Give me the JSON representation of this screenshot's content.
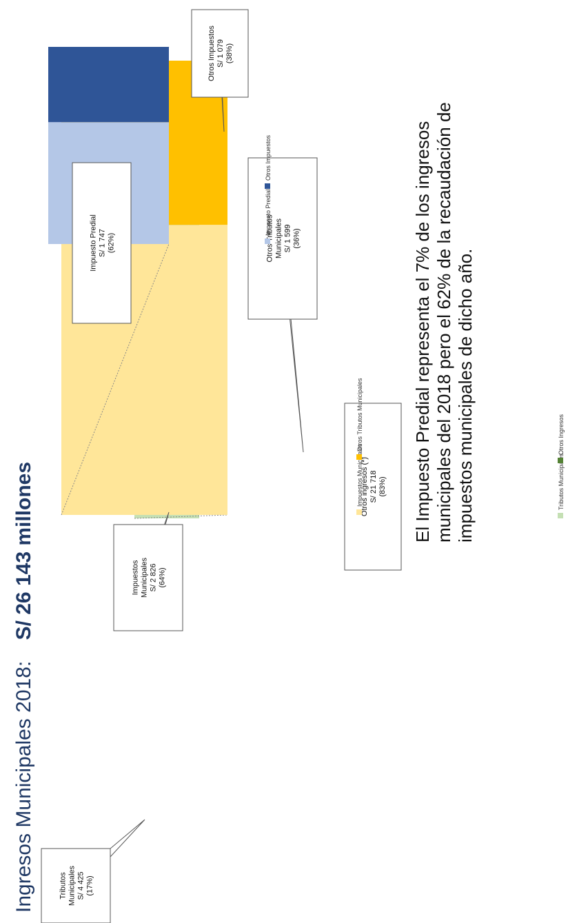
{
  "title": {
    "label": "Ingresos Municipales 2018:",
    "total": "S/ 26 143 millones"
  },
  "chart_data": [
    {
      "type": "bar",
      "stacked": true,
      "categories": [
        "Ingresos Municipales"
      ],
      "series": [
        {
          "name": "Tributos Municipales",
          "values": [
            4425
          ],
          "percent": 17,
          "color": "#c5e0b4",
          "label_lines": [
            "Tributos",
            "Municipales",
            "S/ 4 425",
            "(17%)"
          ]
        },
        {
          "name": "Otros Ingresos",
          "values": [
            21718
          ],
          "percent": 83,
          "color": "#548235",
          "label_lines": [
            "Otros ingresos (*)",
            "S/ 21 718",
            "(83%)"
          ]
        }
      ]
    },
    {
      "type": "bar",
      "stacked": true,
      "categories": [
        "Tributos Municipales"
      ],
      "series": [
        {
          "name": "Impuestos Municipales",
          "values": [
            2826
          ],
          "percent": 64,
          "color": "#ffe699",
          "label_lines": [
            "Impuestos",
            "Municipales",
            "S/ 2 826",
            "(64%)"
          ]
        },
        {
          "name": "Otros Tributos Municipales",
          "values": [
            1599
          ],
          "percent": 36,
          "color": "#ffc000",
          "label_lines": [
            "Otros Tributos",
            "Municipales",
            "S/ 1 599",
            "(36%)"
          ]
        }
      ]
    },
    {
      "type": "bar",
      "stacked": true,
      "categories": [
        "Impuestos Municipales"
      ],
      "series": [
        {
          "name": "Impuesto Predial",
          "values": [
            1747
          ],
          "percent": 62,
          "color": "#b4c7e7",
          "label_lines": [
            "Impuesto Predial",
            "S/ 1 747",
            "(62%)"
          ]
        },
        {
          "name": "Otros Impuestos",
          "values": [
            1079
          ],
          "percent": 38,
          "color": "#2f5597",
          "label_lines": [
            "Otros Impuestos",
            "S/ 1 079",
            "(38%)"
          ]
        }
      ]
    }
  ],
  "note": "El Impuesto Predial representa el 7% de los ingresos municipales del 2018 pero el 62% de la recaudación de impuestos municipales de dicho año."
}
